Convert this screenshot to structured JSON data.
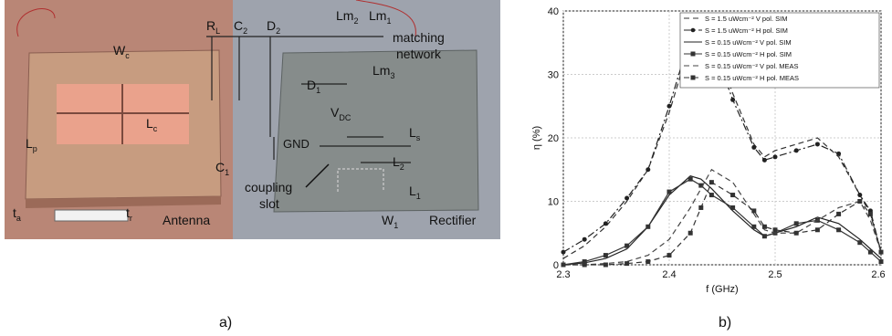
{
  "panel_a": {
    "caption": "a)",
    "labels": [
      {
        "main": "R",
        "sub": "L"
      },
      {
        "main": "C",
        "sub": "2"
      },
      {
        "main": "D",
        "sub": "2"
      },
      {
        "main": "Lm",
        "sub": "2"
      },
      {
        "main": "Lm",
        "sub": "1"
      },
      {
        "main": "W",
        "sub": "c"
      },
      {
        "main": "L",
        "sub": "p"
      },
      {
        "main": "L",
        "sub": "c"
      },
      {
        "main": "D",
        "sub": "1"
      },
      {
        "main": "Lm",
        "sub": "3"
      },
      {
        "main": "V",
        "sub": "DC"
      },
      {
        "main": "L",
        "sub": "s"
      },
      {
        "main": "C",
        "sub": "1"
      },
      {
        "main": "L",
        "sub": "2"
      },
      {
        "main": "L",
        "sub": "1"
      },
      {
        "main": "W",
        "sub": "1"
      },
      {
        "main": "t",
        "sub": "a"
      },
      {
        "main": "t",
        "sub": "r"
      }
    ],
    "matching_network": [
      "matching",
      "network"
    ],
    "coupling_slot": [
      "coupling",
      "slot"
    ],
    "gnd": "GND",
    "antenna": "Antenna",
    "rectifier": "Rectifier"
  },
  "chart_data": {
    "type": "line",
    "caption": "b)",
    "xlabel": "f (GHz)",
    "ylabel": "η (%)",
    "x": [
      2.3,
      2.32,
      2.34,
      2.36,
      2.38,
      2.4,
      2.42,
      2.43,
      2.44,
      2.46,
      2.48,
      2.49,
      2.5,
      2.52,
      2.54,
      2.56,
      2.58,
      2.59,
      2.6
    ],
    "xlim": [
      2.3,
      2.6
    ],
    "xticks": [
      2.3,
      2.4,
      2.5,
      2.6
    ],
    "ylim": [
      0,
      40
    ],
    "yticks": [
      0,
      10,
      20,
      30,
      40
    ],
    "grid": true,
    "legend": "upper right",
    "series": [
      {
        "name": "S = 1.5 uWcm⁻² V pol. SIM",
        "color": "#333333",
        "style": "dashed",
        "values": [
          1,
          3,
          6,
          10,
          15,
          24,
          35,
          38,
          36,
          27,
          19,
          17,
          18,
          19,
          20,
          17,
          11,
          8,
          2
        ]
      },
      {
        "name": "S = 1.5 uWcm⁻² H pol. SIM",
        "color": "#222222",
        "style": "dash-dot",
        "marker": "circle",
        "values": [
          2,
          4,
          6.5,
          10.5,
          15,
          25,
          36,
          37.5,
          35,
          26,
          18.5,
          16.5,
          17,
          18,
          19,
          17.5,
          11,
          8.5,
          2
        ]
      },
      {
        "name": "S = 0.15 uWcm⁻² V pol. SIM",
        "color": "#222222",
        "style": "solid",
        "values": [
          0,
          0.3,
          1,
          2.5,
          6,
          11,
          14,
          13.5,
          12,
          8.5,
          5.5,
          4.5,
          5,
          6,
          7.5,
          6.5,
          4,
          2.5,
          1
        ]
      },
      {
        "name": "S = 0.15 uWcm⁻² H pol. SIM",
        "color": "#333333",
        "style": "solid",
        "marker": "square",
        "values": [
          0,
          0.5,
          1.5,
          3,
          6,
          11.5,
          13.5,
          12.5,
          11,
          9,
          6,
          4.5,
          5,
          6.5,
          7,
          5.5,
          3.5,
          2,
          0.5
        ]
      },
      {
        "name": "S = 0.15 uWcm⁻² V pol. MEAS",
        "color": "#444444",
        "style": "dashed",
        "values": [
          0,
          0,
          0.2,
          0.5,
          1.5,
          4,
          9,
          12,
          15,
          13,
          8,
          5.5,
          5,
          5,
          7,
          9,
          10,
          7,
          2
        ]
      },
      {
        "name": "S = 0.15 uWcm⁻² H pol. MEAS",
        "color": "#333333",
        "style": "dashed",
        "marker": "square",
        "values": [
          0,
          0,
          0,
          0.2,
          0.5,
          1.5,
          5,
          9,
          13,
          11,
          8.5,
          6,
          5.5,
          5,
          5.5,
          8,
          10,
          8,
          2
        ]
      }
    ]
  }
}
